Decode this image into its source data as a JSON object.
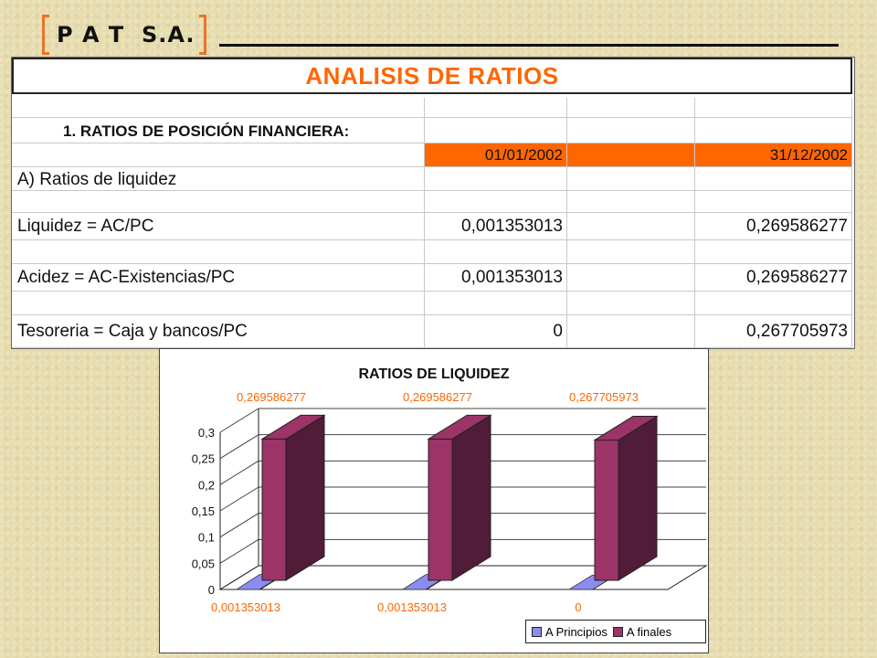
{
  "logo": {
    "text": "P A T  S.A."
  },
  "sheet": {
    "title": "ANALISIS DE RATIOS",
    "section_title": "1. RATIOS DE POSICIÓN FINANCIERA:",
    "date_start": "01/01/2002",
    "date_end": "31/12/2002",
    "group_label": "A) Ratios de liquidez",
    "rows": [
      {
        "label": "Liquidez = AC/PC",
        "v1": "0,001353013",
        "v2": "0,269586277"
      },
      {
        "label": "Acidez = AC-Existencias/PC",
        "v1": "0,001353013",
        "v2": "0,269586277"
      },
      {
        "label": "Tesoreria = Caja y bancos/PC",
        "v1": "0",
        "v2": "0,267705973"
      }
    ]
  },
  "colors": {
    "accent": "#ff6600",
    "principios": "#8c8cf0",
    "finales": "#9c3468",
    "finales_dark": "#501c38"
  },
  "chart_data": {
    "type": "bar",
    "title": "RATIOS DE LIQUIDEZ",
    "categories": [
      "",
      "",
      ""
    ],
    "ylim": [
      0,
      0.3
    ],
    "yticks": [
      "0",
      "0,05",
      "0,1",
      "0,15",
      "0,2",
      "0,25",
      "0,3"
    ],
    "grid": true,
    "legend_position": "bottom-right",
    "series": [
      {
        "name": "A Principios",
        "values": [
          0.001353013,
          0.001353013,
          0
        ],
        "labels": [
          "0,001353013",
          "0,001353013",
          "0"
        ]
      },
      {
        "name": "A finales",
        "values": [
          0.269586277,
          0.269586277,
          0.267705973
        ],
        "labels": [
          "0,269586277",
          "0,269586277",
          "0,267705973"
        ]
      }
    ]
  }
}
